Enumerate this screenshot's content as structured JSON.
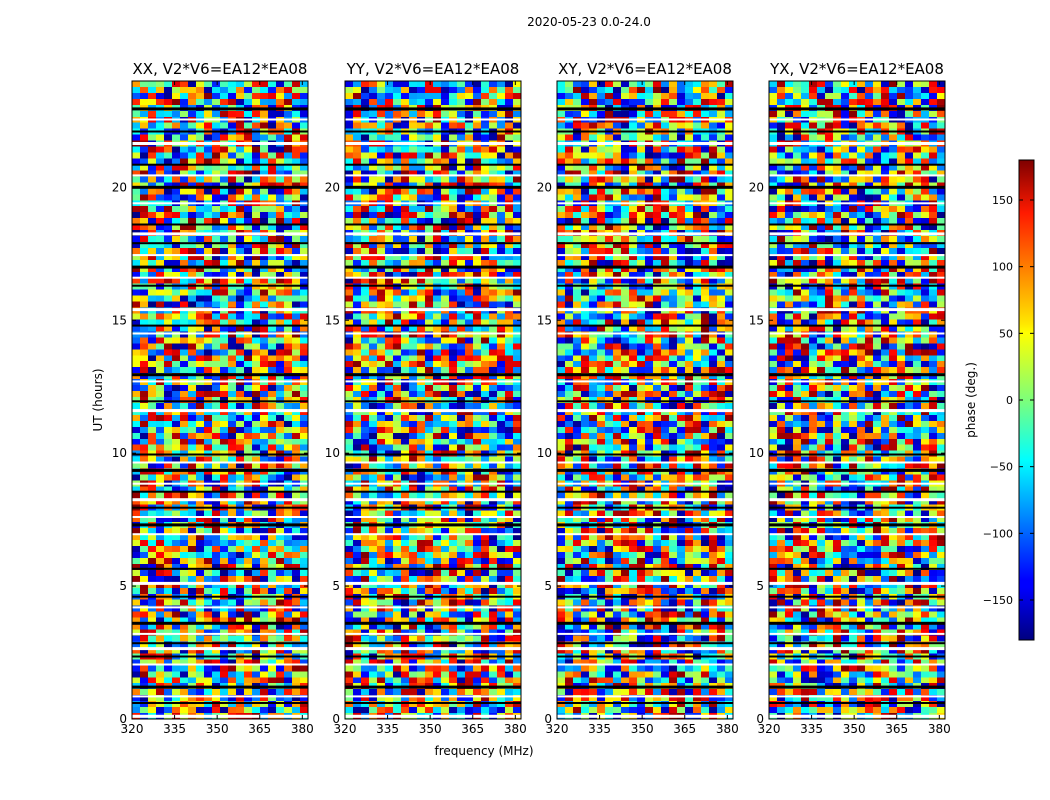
{
  "figure_title": "2020-05-23 0.0-24.0",
  "chart_data": {
    "type": "heatmap",
    "panels": [
      {
        "title": "XX, V2*V6=EA12*EA08",
        "seed": 11
      },
      {
        "title": "YY, V2*V6=EA12*EA08",
        "seed": 23
      },
      {
        "title": "XY, V2*V6=EA12*EA08",
        "seed": 37
      },
      {
        "title": "YX, V2*V6=EA12*EA08",
        "seed": 53
      }
    ],
    "xlabel": "frequency (MHz)",
    "ylabel": "UT (hours)",
    "xlim": [
      320,
      382
    ],
    "ylim": [
      0,
      24
    ],
    "xticks": [
      320,
      335,
      350,
      365,
      380
    ],
    "yticks": [
      0,
      5,
      10,
      15,
      20
    ],
    "colorbar": {
      "label": "phase (deg.)",
      "range": [
        -180,
        180
      ],
      "ticks": [
        150,
        100,
        50,
        0,
        -50,
        -100,
        -150
      ],
      "tick_labels": [
        "150",
        "100",
        "50",
        "0",
        "−50",
        "−100",
        "−150"
      ],
      "colormap": "jet"
    },
    "gaps_hours": [
      0.1,
      0.6,
      0.85,
      1.2,
      2.05,
      2.35,
      2.65,
      2.85,
      3.2,
      3.6,
      4.2,
      4.6,
      5.1,
      5.65,
      6.95,
      7.3,
      7.6,
      7.95,
      8.25,
      8.55,
      8.85,
      9.35,
      9.65,
      9.95,
      11.6,
      11.95,
      12.7,
      12.95,
      14.5,
      14.8,
      15.4,
      16.3,
      16.6,
      17.0,
      17.45,
      17.9,
      18.25,
      18.6,
      19.4,
      20.0,
      20.45,
      20.85,
      21.65,
      22.1,
      22.55,
      22.95
    ],
    "gap_color": "#ffffff",
    "flag_color": "#000000"
  }
}
